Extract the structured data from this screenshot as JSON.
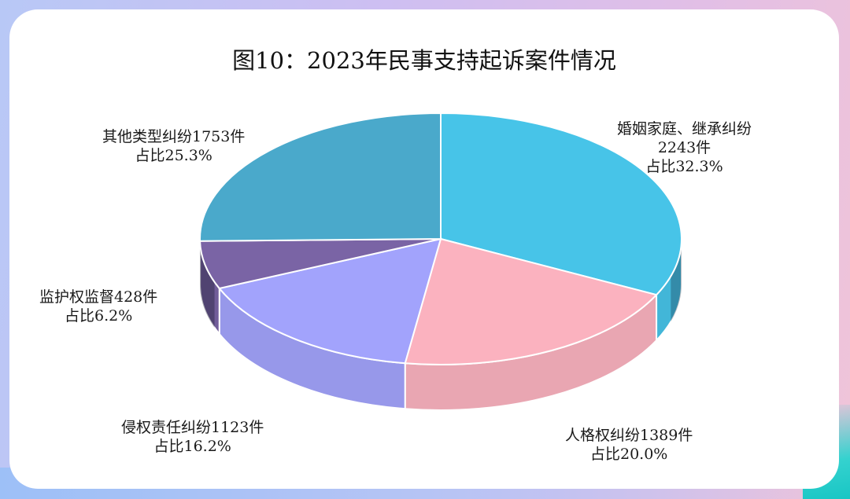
{
  "chart_data": {
    "type": "pie",
    "title": "图10：2023年民事支持起诉案件情况",
    "slices": [
      {
        "category": "婚姻家庭、继承纠纷",
        "count_label": "2243件",
        "value": 2243,
        "percent_label": "占比32.3%",
        "percent": 32.3,
        "color": "#47c4e8"
      },
      {
        "category": "人格权纠纷1389件",
        "value": 1389,
        "percent_label": "占比20.0%",
        "percent": 20.0,
        "color": "#fbb2bf"
      },
      {
        "category": "侵权责任纠纷1123件",
        "value": 1123,
        "percent_label": "占比16.2%",
        "percent": 16.2,
        "color": "#a2a3fc"
      },
      {
        "category": "监护权监督428件",
        "value": 428,
        "percent_label": "占比6.2%",
        "percent": 6.2,
        "color": "#7a64a5"
      },
      {
        "category": "其他类型纠纷1753件",
        "value": 1753,
        "percent_label": "占比25.3%",
        "percent": 25.3,
        "color": "#4aa9cb"
      }
    ]
  }
}
